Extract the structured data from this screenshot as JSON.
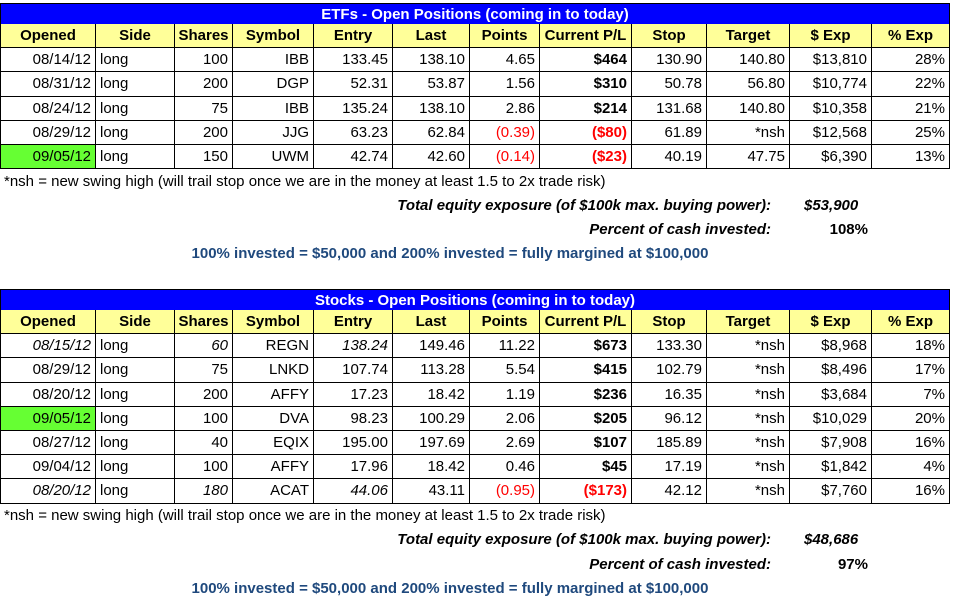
{
  "sections": [
    {
      "title": "ETFs - Open Positions (coming in to today)",
      "columns": [
        "Opened",
        "Side",
        "Shares",
        "Symbol",
        "Entry",
        "Last",
        "Points",
        "Current P/L",
        "Stop",
        "Target",
        "$ Exp",
        "% Exp"
      ],
      "rows": [
        [
          "08/14/12",
          "long",
          "100",
          "IBB",
          "133.45",
          "138.10",
          "4.65",
          "$464",
          "130.90",
          "140.80",
          "$13,810",
          "28%"
        ],
        [
          "08/31/12",
          "long",
          "200",
          "DGP",
          "52.31",
          "53.87",
          "1.56",
          "$310",
          "50.78",
          "56.80",
          "$10,774",
          "22%"
        ],
        [
          "08/24/12",
          "long",
          "75",
          "IBB",
          "135.24",
          "138.10",
          "2.86",
          "$214",
          "131.68",
          "140.80",
          "$10,358",
          "21%"
        ],
        [
          "08/29/12",
          "long",
          "200",
          "JJG",
          "63.23",
          "62.84",
          "(0.39)",
          "($80)",
          "61.89",
          "*nsh",
          "$12,568",
          "25%"
        ],
        [
          "09/05/12",
          "long",
          "150",
          "UWM",
          "42.74",
          "42.60",
          "(0.14)",
          "($23)",
          "40.19",
          "47.75",
          "$6,390",
          "13%"
        ]
      ],
      "note": "*nsh = new swing high (will trail stop once we are in the money at least 1.5 to 2x trade risk)",
      "total_label": "Total equity exposure (of $100k max. buying power):",
      "total_value": "$53,900",
      "percent_label": "Percent of cash invested:",
      "percent_value": "108%",
      "invested_note": "100% invested = $50,000 and 200% invested = fully margined at $100,000"
    },
    {
      "title": "Stocks - Open Positions (coming in to today)",
      "columns": [
        "Opened",
        "Side",
        "Shares",
        "Symbol",
        "Entry",
        "Last",
        "Points",
        "Current P/L",
        "Stop",
        "Target",
        "$ Exp",
        "% Exp"
      ],
      "rows": [
        [
          "08/15/12",
          "long",
          "60",
          "REGN",
          "138.24",
          "149.46",
          "11.22",
          "$673",
          "133.30",
          "*nsh",
          "$8,968",
          "18%"
        ],
        [
          "08/29/12",
          "long",
          "75",
          "LNKD",
          "107.74",
          "113.28",
          "5.54",
          "$415",
          "102.79",
          "*nsh",
          "$8,496",
          "17%"
        ],
        [
          "08/20/12",
          "long",
          "200",
          "AFFY",
          "17.23",
          "18.42",
          "1.19",
          "$236",
          "16.35",
          "*nsh",
          "$3,684",
          "7%"
        ],
        [
          "09/05/12",
          "long",
          "100",
          "DVA",
          "98.23",
          "100.29",
          "2.06",
          "$205",
          "96.12",
          "*nsh",
          "$10,029",
          "20%"
        ],
        [
          "08/27/12",
          "long",
          "40",
          "EQIX",
          "195.00",
          "197.69",
          "2.69",
          "$107",
          "185.89",
          "*nsh",
          "$7,908",
          "16%"
        ],
        [
          "09/04/12",
          "long",
          "100",
          "AFFY",
          "17.96",
          "18.42",
          "0.46",
          "$45",
          "17.19",
          "*nsh",
          "$1,842",
          "4%"
        ],
        [
          "08/20/12",
          "long",
          "180",
          "ACAT",
          "44.06",
          "43.11",
          "(0.95)",
          "($173)",
          "42.12",
          "*nsh",
          "$7,760",
          "16%"
        ]
      ],
      "note": "*nsh = new swing high (will trail stop once we are in the money at least 1.5 to 2x trade risk)",
      "total_label": "Total equity exposure (of $100k max. buying power):",
      "total_value": "$48,686",
      "percent_label": "Percent of cash invested:",
      "percent_value": "97%",
      "invested_note": "100% invested = $50,000 and 200% invested = fully margined at $100,000"
    }
  ]
}
